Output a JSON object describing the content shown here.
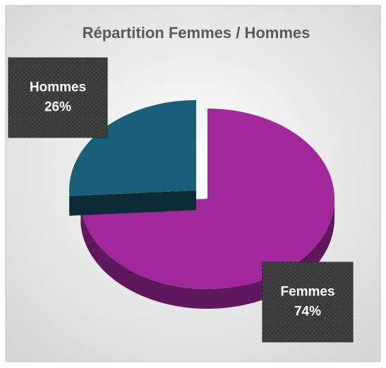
{
  "chart_data": {
    "type": "pie",
    "title": "Répartition Femmes / Hommes",
    "categories": [
      "Femmes",
      "Hommes"
    ],
    "values": [
      74,
      26
    ],
    "value_labels": [
      "74%",
      "26%"
    ],
    "colors": [
      "#a0289a",
      "#1a5f7a"
    ]
  }
}
